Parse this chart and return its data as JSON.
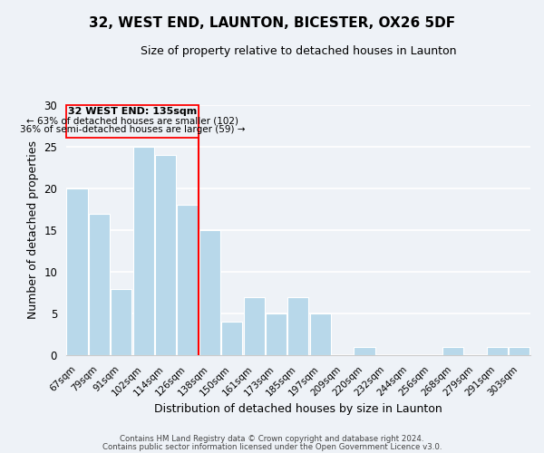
{
  "title": "32, WEST END, LAUNTON, BICESTER, OX26 5DF",
  "subtitle": "Size of property relative to detached houses in Launton",
  "xlabel": "Distribution of detached houses by size in Launton",
  "ylabel": "Number of detached properties",
  "bar_labels": [
    "67sqm",
    "79sqm",
    "91sqm",
    "102sqm",
    "114sqm",
    "126sqm",
    "138sqm",
    "150sqm",
    "161sqm",
    "173sqm",
    "185sqm",
    "197sqm",
    "209sqm",
    "220sqm",
    "232sqm",
    "244sqm",
    "256sqm",
    "268sqm",
    "279sqm",
    "291sqm",
    "303sqm"
  ],
  "bar_values": [
    20,
    17,
    8,
    25,
    24,
    18,
    15,
    4,
    7,
    5,
    7,
    5,
    0,
    1,
    0,
    0,
    0,
    1,
    0,
    1,
    1
  ],
  "bar_color": "#b8d8ea",
  "highlight_line_color": "red",
  "highlight_line_index": 6,
  "annotation_title": "32 WEST END: 135sqm",
  "annotation_line1": "← 63% of detached houses are smaller (102)",
  "annotation_line2": "36% of semi-detached houses are larger (59) →",
  "box_color": "red",
  "ylim": [
    0,
    30
  ],
  "yticks": [
    0,
    5,
    10,
    15,
    20,
    25,
    30
  ],
  "footer1": "Contains HM Land Registry data © Crown copyright and database right 2024.",
  "footer2": "Contains public sector information licensed under the Open Government Licence v3.0.",
  "background_color": "#eef2f7",
  "grid_color": "white"
}
